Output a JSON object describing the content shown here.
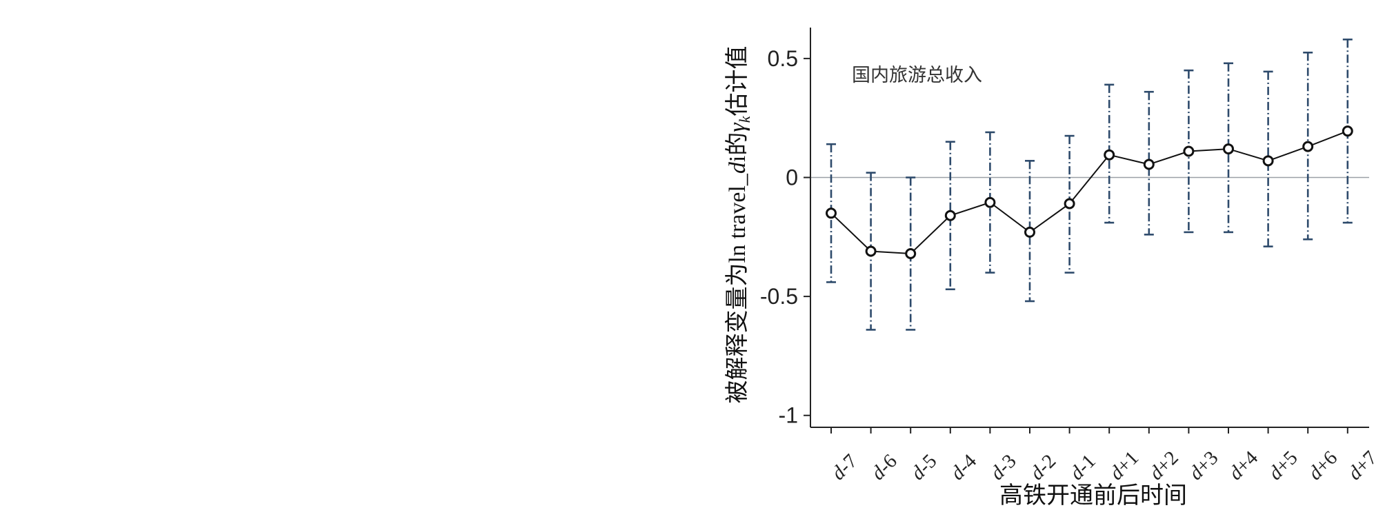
{
  "chart_data": {
    "type": "line",
    "title": "",
    "annotation": "国内旅游总收入",
    "xlabel": "高铁开通前后时间",
    "ylabel": "被解释变量为ln travel_di的γk估计值",
    "ylabel_parts": {
      "prefix": "被解释变量为",
      "var": "ln travel",
      "underscore": "_",
      "italic_d": "d",
      "roman_i": "i",
      "de": "的",
      "gamma": "γ",
      "sub": "k",
      "suffix": "估计值"
    },
    "categories": [
      "d-7",
      "d-6",
      "d-5",
      "d-4",
      "d-3",
      "d-2",
      "d-1",
      "d+1",
      "d+2",
      "d+3",
      "d+4",
      "d+5",
      "d+6",
      "d+7"
    ],
    "category_parts": [
      {
        "d": "d",
        "rest": "-7"
      },
      {
        "d": "d",
        "rest": "-6"
      },
      {
        "d": "d",
        "rest": "-5"
      },
      {
        "d": "d",
        "rest": "-4"
      },
      {
        "d": "d",
        "rest": "-3"
      },
      {
        "d": "d",
        "rest": "-2"
      },
      {
        "d": "d",
        "rest": "-1"
      },
      {
        "d": "d",
        "rest": "+1"
      },
      {
        "d": "d",
        "rest": "+2"
      },
      {
        "d": "d",
        "rest": "+3"
      },
      {
        "d": "d",
        "rest": "+4"
      },
      {
        "d": "d",
        "rest": "+5"
      },
      {
        "d": "d",
        "rest": "+6"
      },
      {
        "d": "d",
        "rest": "+7"
      }
    ],
    "series": [
      {
        "values": [
          -0.15,
          -0.31,
          -0.32,
          -0.16,
          -0.105,
          -0.23,
          -0.11,
          0.095,
          0.055,
          0.11,
          0.12,
          0.07,
          0.13,
          0.195
        ],
        "ci_low": [
          -0.44,
          -0.64,
          -0.64,
          -0.47,
          -0.4,
          -0.52,
          -0.4,
          -0.19,
          -0.24,
          -0.23,
          -0.23,
          -0.29,
          -0.26,
          -0.19
        ],
        "ci_high": [
          0.14,
          0.02,
          0.0,
          0.15,
          0.19,
          0.07,
          0.175,
          0.39,
          0.36,
          0.45,
          0.48,
          0.445,
          0.525,
          0.58
        ]
      }
    ],
    "yticks": [
      0.5,
      0,
      -0.5,
      -1
    ],
    "ytick_labels": [
      "0.5",
      "0",
      "-0.5",
      "-1"
    ],
    "ylim": [
      -1.05,
      0.63
    ],
    "reference_line_y": 0,
    "grid": false,
    "colors": {
      "point_line": "#111111",
      "error_bar": "#2d4a6b",
      "reference_line": "#9aa0a6",
      "axis": "#222222"
    }
  }
}
